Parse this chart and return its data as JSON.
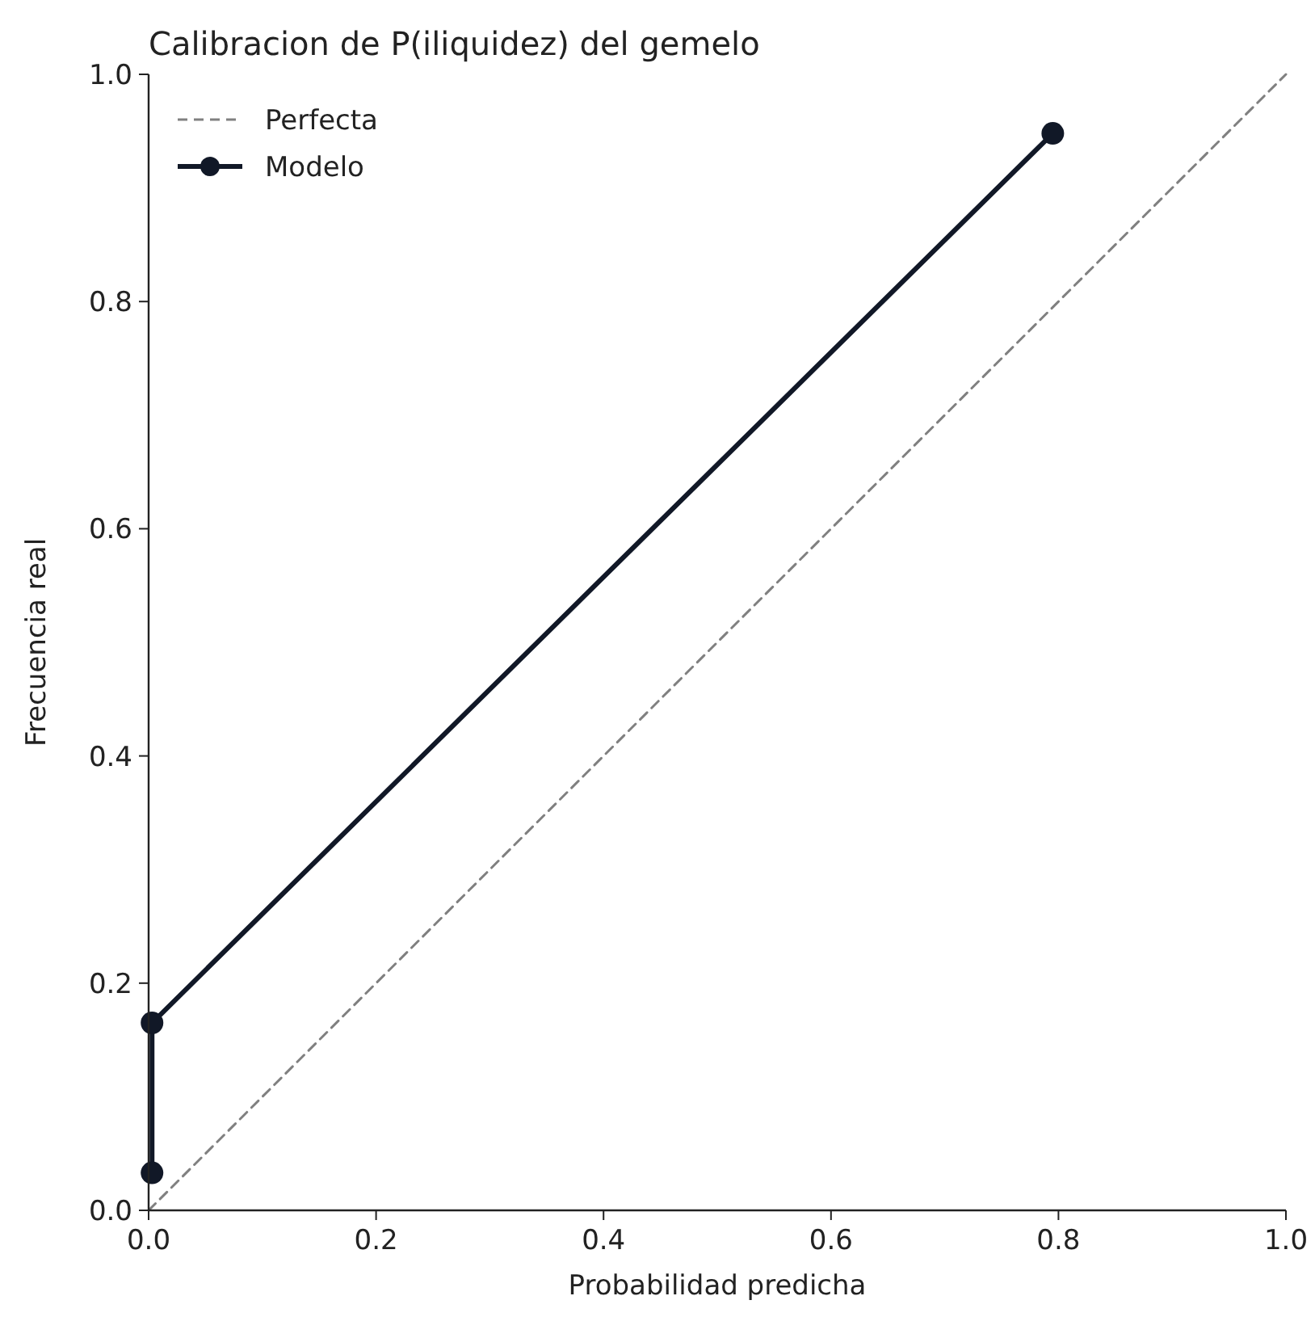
{
  "chart_data": {
    "type": "line",
    "title": "Calibracion de P(iliquidez) del gemelo",
    "xlabel": "Probabilidad predicha",
    "ylabel": "Frecuencia real",
    "xlim": [
      0,
      1
    ],
    "ylim": [
      0,
      1
    ],
    "xticks": [
      {
        "value": 0,
        "label": "0.0"
      },
      0.2,
      0.4,
      0.6,
      0.8,
      {
        "value": 1,
        "label": "1.0"
      }
    ],
    "yticks": [
      {
        "value": 0,
        "label": "0.0"
      },
      0.2,
      0.4,
      0.6,
      0.8,
      {
        "value": 1,
        "label": "1.0"
      }
    ],
    "grid": false,
    "legend": "top left",
    "series": [
      {
        "name": "Perfecta",
        "color": "#808080",
        "x": [
          0,
          1
        ],
        "values": [
          0,
          1
        ],
        "line_style": "dashed",
        "marker": "none"
      },
      {
        "name": "Modelo",
        "color": "#111827",
        "x": [
          0.003,
          0.003,
          0.795
        ],
        "values": [
          0.033,
          0.165,
          0.948
        ],
        "line_style": "solid",
        "marker": "circle"
      }
    ]
  }
}
